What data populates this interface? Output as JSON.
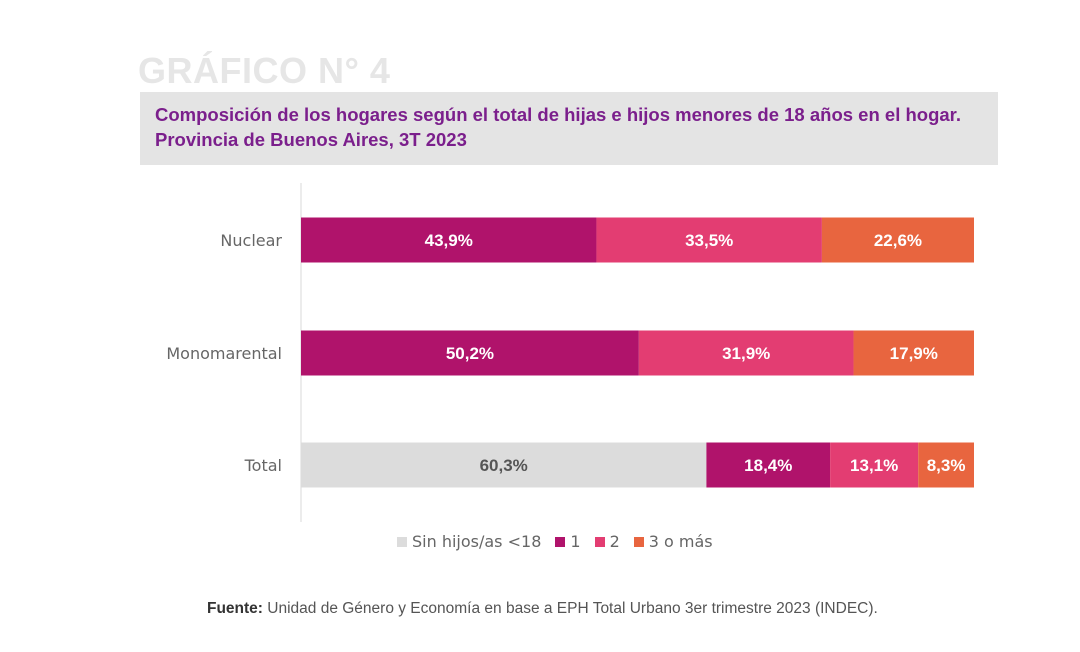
{
  "figure_label": "GRÁFICO N° 4",
  "title": "Composición de los hogares según el total de hijas e hijos menores de 18 años en el hogar. Provincia de Buenos Aires, 3T 2023",
  "source": {
    "label": "Fuente:",
    "text": " Unidad de Género y Economía en base a EPH Total Urbano 3er trimestre 2023 (INDEC)."
  },
  "legend": [
    {
      "label": "Sin hijos/as <18",
      "color": "#dcdcdc"
    },
    {
      "label": "1",
      "color": "#b0136b"
    },
    {
      "label": "2",
      "color": "#e33d72"
    },
    {
      "label": "3 o más",
      "color": "#e8653f"
    }
  ],
  "chart_data": {
    "type": "bar",
    "orientation": "horizontal",
    "stacked": true,
    "percent": true,
    "categories": [
      "Nuclear",
      "Monomarental",
      "Total"
    ],
    "series": [
      {
        "name": "Sin hijos/as <18",
        "color": "#dcdcdc",
        "label_color": "#555555",
        "values": [
          0,
          0,
          60.3
        ],
        "labels": [
          "",
          "",
          "60,3%"
        ]
      },
      {
        "name": "1",
        "color": "#b0136b",
        "label_color": "#ffffff",
        "values": [
          43.9,
          50.2,
          18.4
        ],
        "labels": [
          "43,9%",
          "50,2%",
          "18,4%"
        ]
      },
      {
        "name": "2",
        "color": "#e33d72",
        "label_color": "#ffffff",
        "values": [
          33.5,
          31.9,
          13.1
        ],
        "labels": [
          "33,5%",
          "31,9%",
          "13,1%"
        ]
      },
      {
        "name": "3 o más",
        "color": "#e8653f",
        "label_color": "#ffffff",
        "values": [
          22.6,
          17.9,
          8.3
        ],
        "labels": [
          "22,6%",
          "17,9%",
          "8,3%"
        ]
      }
    ],
    "xlim": [
      0,
      100
    ],
    "grid": false,
    "legend_position": "bottom"
  }
}
